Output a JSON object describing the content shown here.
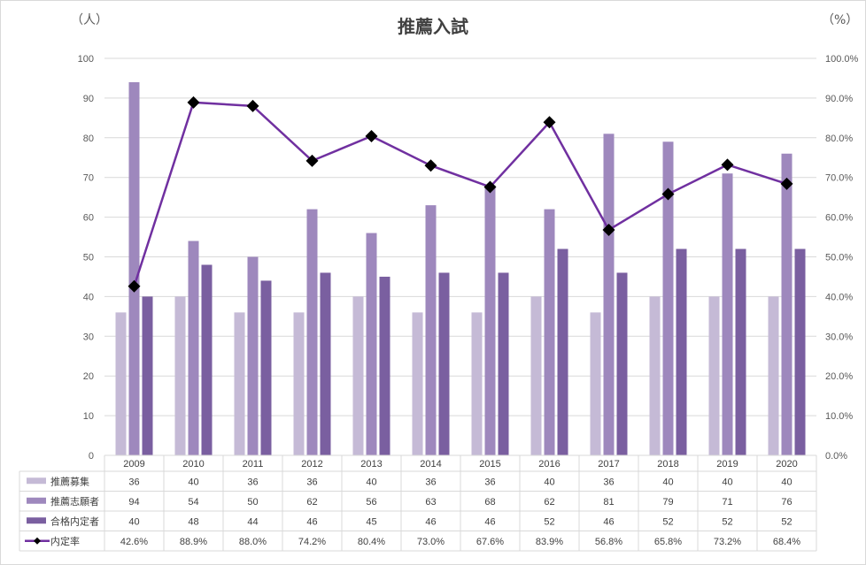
{
  "chart_data": {
    "type": "bar",
    "title": "推薦入試",
    "y_left_unit": "（人）",
    "y_right_unit": "（%）",
    "categories": [
      "2009",
      "2010",
      "2011",
      "2012",
      "2013",
      "2014",
      "2015",
      "2016",
      "2017",
      "2018",
      "2019",
      "2020"
    ],
    "ylim": [
      0,
      100
    ],
    "y2lim": [
      0,
      100
    ],
    "y_ticks": [
      "0",
      "10",
      "20",
      "30",
      "40",
      "50",
      "60",
      "70",
      "80",
      "90",
      "100"
    ],
    "y2_ticks": [
      "0.0%",
      "10.0%",
      "20.0%",
      "30.0%",
      "40.0%",
      "50.0%",
      "60.0%",
      "70.0%",
      "80.0%",
      "90.0%",
      "100.0%"
    ],
    "grid": true,
    "series": [
      {
        "name": "推薦募集",
        "kind": "bar",
        "color": "#c5bad6",
        "values": [
          36,
          40,
          36,
          36,
          40,
          36,
          36,
          40,
          36,
          40,
          40,
          40
        ]
      },
      {
        "name": "推薦志願者",
        "kind": "bar",
        "color": "#9e88bd",
        "values": [
          94,
          54,
          50,
          62,
          56,
          63,
          68,
          62,
          81,
          79,
          71,
          76
        ]
      },
      {
        "name": "合格内定者",
        "kind": "bar",
        "color": "#7a5fa0",
        "values": [
          40,
          48,
          44,
          46,
          45,
          46,
          46,
          52,
          46,
          52,
          52,
          52
        ]
      },
      {
        "name": "内定率",
        "kind": "line",
        "axis": "right",
        "color": "#7030a0",
        "marker_color": "#000000",
        "values": [
          42.6,
          88.9,
          88.0,
          74.2,
          80.4,
          73.0,
          67.6,
          83.9,
          56.8,
          65.8,
          73.2,
          68.4
        ],
        "labels": [
          "42.6%",
          "88.9%",
          "88.0%",
          "74.2%",
          "80.4%",
          "73.0%",
          "67.6%",
          "83.9%",
          "56.8%",
          "65.8%",
          "73.2%",
          "68.4%"
        ]
      }
    ],
    "data_table": true
  }
}
